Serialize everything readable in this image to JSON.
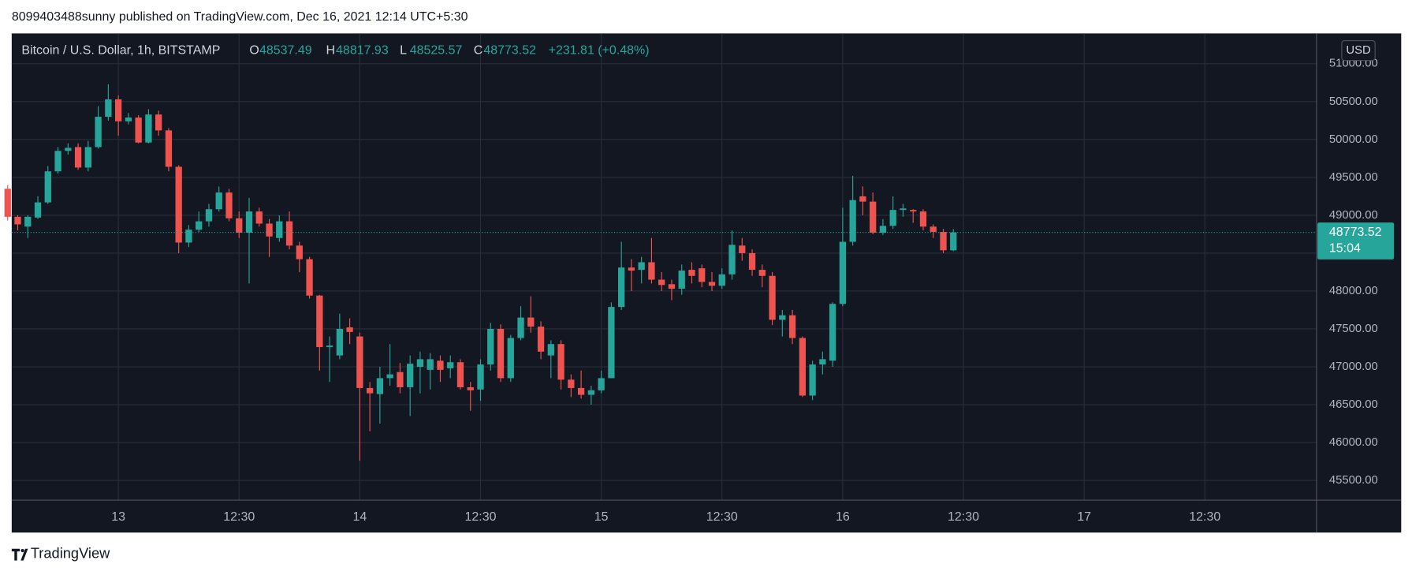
{
  "publisher_line": "8099403488sunny published on TradingView.com, Dec 16, 2021 12:14 UTC+5:30",
  "brand": "TradingView",
  "chart_data": {
    "type": "candlestick",
    "symbol": "Bitcoin / U.S. Dollar, 1h, BITSTAMP",
    "legend_labels": {
      "open": "O",
      "high": "H",
      "low": "L",
      "close": "C"
    },
    "change": "+231.81 (+0.48%)",
    "currency": "USD",
    "countdown": "15:04",
    "up_color": "#26a69a",
    "down_color": "#ef5350",
    "grid": true,
    "open": [
      49350,
      48980,
      48850,
      48970,
      49170,
      49580,
      49850,
      49900,
      49630,
      49900,
      50300,
      50530,
      50240,
      50290,
      49960,
      50330,
      50120,
      49640,
      48640,
      48810,
      48920,
      49080,
      49300,
      48960,
      48770,
      49050,
      48890,
      48700,
      48920,
      48600,
      48420,
      47940,
      47260,
      47150,
      47520,
      47400,
      46720,
      46640,
      46850,
      46930,
      46730,
      47000,
      46960,
      47080,
      46980,
      47060,
      46730,
      46700,
      47030,
      47500,
      46850,
      47380,
      47650,
      47530,
      47150,
      47300,
      46830,
      46720,
      46630,
      46690,
      46850,
      47790,
      48310,
      48280,
      48380,
      48150,
      48090,
      48030,
      48280,
      48300,
      48120,
      48070,
      48220,
      48600,
      48500,
      48280,
      48200,
      47620,
      47680,
      47380,
      46620,
      47030,
      47080,
      47830,
      48650,
      49250,
      49180,
      48770,
      48860,
      49070,
      49070,
      49050,
      48850,
      48780,
      48537.49
    ],
    "high": [
      49400,
      49000,
      49000,
      49250,
      49650,
      49900,
      49950,
      49950,
      49980,
      50440,
      50730,
      50580,
      50350,
      50320,
      50400,
      50380,
      50150,
      49660,
      48870,
      49050,
      49150,
      49380,
      49350,
      49050,
      49230,
      49100,
      48950,
      49000,
      49050,
      48650,
      48450,
      47950,
      47400,
      47700,
      47640,
      47450,
      46800,
      47000,
      47300,
      47050,
      47150,
      47200,
      47180,
      47150,
      47150,
      47100,
      46800,
      47100,
      47580,
      47560,
      47420,
      47800,
      47930,
      47600,
      47350,
      47350,
      46900,
      46950,
      46750,
      46950,
      47850,
      48650,
      48420,
      48450,
      48700,
      48250,
      48150,
      48350,
      48380,
      48350,
      48250,
      48300,
      48800,
      48700,
      48550,
      48350,
      48250,
      47750,
      47750,
      47400,
      47080,
      47200,
      47850,
      49100,
      49520,
      49380,
      49300,
      48950,
      49250,
      49150,
      49080,
      49080,
      48880,
      48820,
      48817.93
    ],
    "low": [
      48930,
      48800,
      48700,
      48950,
      49150,
      49550,
      49800,
      49600,
      49580,
      49880,
      50250,
      50050,
      50200,
      49950,
      49950,
      50050,
      49580,
      48500,
      48580,
      48780,
      48850,
      49050,
      48920,
      48700,
      48100,
      48850,
      48450,
      48650,
      48550,
      48250,
      47900,
      46950,
      46800,
      47100,
      47300,
      45760,
      46150,
      46250,
      46750,
      46650,
      46350,
      46650,
      46700,
      46800,
      46850,
      46700,
      46420,
      46550,
      46950,
      46800,
      46800,
      47350,
      47450,
      47100,
      46850,
      46700,
      46600,
      46580,
      46500,
      46650,
      46850,
      47750,
      48000,
      48100,
      48100,
      48000,
      47880,
      47950,
      48100,
      48050,
      48000,
      48030,
      48150,
      48400,
      48200,
      48050,
      47550,
      47400,
      47300,
      46600,
      46560,
      46900,
      47000,
      47800,
      48600,
      49000,
      48750,
      48740,
      48820,
      48980,
      48900,
      48800,
      48700,
      48500,
      48525.57
    ],
    "close": [
      48980,
      48880,
      48980,
      49170,
      49580,
      49850,
      49890,
      49630,
      49900,
      50300,
      50530,
      50240,
      50290,
      49960,
      50330,
      50120,
      49640,
      48640,
      48810,
      48920,
      49080,
      49300,
      48960,
      48770,
      49050,
      48890,
      48720,
      48920,
      48600,
      48420,
      47940,
      47260,
      47280,
      47500,
      47460,
      46720,
      46650,
      46850,
      46900,
      46730,
      47040,
      47100,
      47100,
      46960,
      47060,
      46730,
      46690,
      47030,
      47500,
      46850,
      47380,
      47650,
      47530,
      47200,
      47300,
      46830,
      46720,
      46630,
      46690,
      46850,
      47790,
      48310,
      48270,
      48380,
      48150,
      48080,
      48030,
      48270,
      48200,
      48120,
      48070,
      48220,
      48610,
      48500,
      48280,
      48200,
      47620,
      47680,
      47380,
      46620,
      47030,
      47100,
      47830,
      48650,
      49200,
      49180,
      48770,
      48860,
      49070,
      49090,
      49050,
      48850,
      48780,
      48537.49,
      48773.52
    ],
    "xlim": [
      0.4,
      130.1
    ],
    "xticks": [
      {
        "value": 11,
        "label": "13"
      },
      {
        "value": 23,
        "label": "12:30"
      },
      {
        "value": 35,
        "label": "14"
      },
      {
        "value": 47,
        "label": "12:30"
      },
      {
        "value": 59,
        "label": "15"
      },
      {
        "value": 71,
        "label": "12:30"
      },
      {
        "value": 83,
        "label": "16"
      },
      {
        "value": 95,
        "label": "12:30"
      },
      {
        "value": 107,
        "label": "17"
      },
      {
        "value": 119,
        "label": "12:30"
      }
    ],
    "ylim": [
      45240,
      51400
    ],
    "yticks": [
      {
        "value": 45500,
        "label": "45500.00"
      },
      {
        "value": 46000,
        "label": "46000.00"
      },
      {
        "value": 46500,
        "label": "46500.00"
      },
      {
        "value": 47000,
        "label": "47000.00"
      },
      {
        "value": 47500,
        "label": "47500.00"
      },
      {
        "value": 48000,
        "label": "48000.00"
      },
      {
        "value": 48500,
        "label": "48500.00"
      },
      {
        "value": 49000,
        "label": "49000.00"
      },
      {
        "value": 49500,
        "label": "49500.00"
      },
      {
        "value": 50000,
        "label": "50000.00"
      },
      {
        "value": 50500,
        "label": "50500.00"
      },
      {
        "value": 51000,
        "label": "51000.00"
      }
    ]
  }
}
